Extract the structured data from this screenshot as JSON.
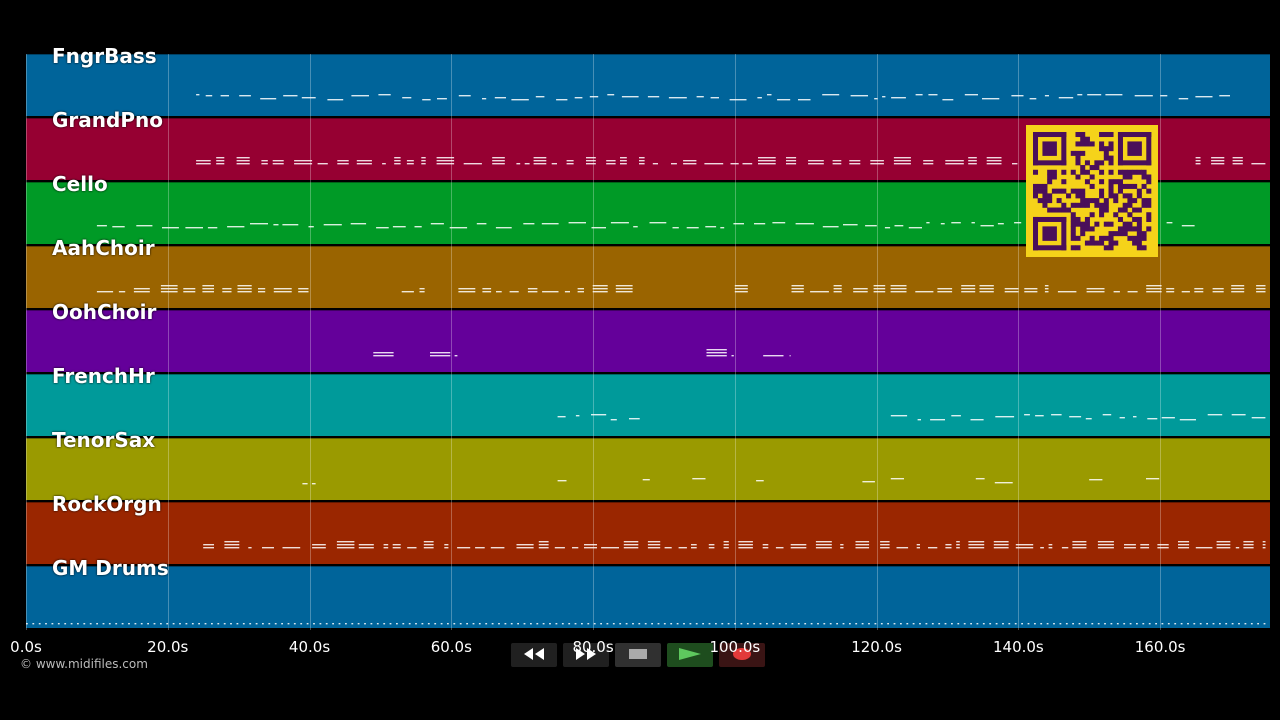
{
  "tracks": [
    {
      "name": "FngrBass",
      "color": "#00649a",
      "style": "line"
    },
    {
      "name": "GrandPno",
      "color": "#960032",
      "style": "dense"
    },
    {
      "name": "Cello",
      "color": "#009a26",
      "style": "line"
    },
    {
      "name": "AahChoir",
      "color": "#9a6400",
      "style": "dense"
    },
    {
      "name": "OohChoir",
      "color": "#64009a",
      "style": "sparse"
    },
    {
      "name": "FrenchHr",
      "color": "#009a9a",
      "style": "line"
    },
    {
      "name": "TenorSax",
      "color": "#9a9a00",
      "style": "bits"
    },
    {
      "name": "RockOrgn",
      "color": "#9a2600",
      "style": "dense"
    },
    {
      "name": "GM Drums",
      "color": "#00649a",
      "style": "dots"
    }
  ],
  "axis": {
    "min_seconds": 0,
    "max_seconds": 175.5,
    "ticks": [
      {
        "value": 0,
        "label": "0.0s"
      },
      {
        "value": 20,
        "label": "20.0s"
      },
      {
        "value": 40,
        "label": "40.0s"
      },
      {
        "value": 60,
        "label": "60.0s"
      },
      {
        "value": 80,
        "label": "80.0s"
      },
      {
        "value": 100,
        "label": "100.0s"
      },
      {
        "value": 120,
        "label": "120.0s"
      },
      {
        "value": 140,
        "label": "140.0s"
      },
      {
        "value": 160,
        "label": "160.0s"
      }
    ]
  },
  "copyright": "© www.midifiles.com",
  "transport": [
    {
      "name": "rewind-button",
      "icon": "rewind-icon",
      "bg": "#202020"
    },
    {
      "name": "fast-forward-button",
      "icon": "fast-forward-icon",
      "bg": "#202020"
    },
    {
      "name": "stop-button",
      "icon": "stop-icon",
      "bg": "#303030"
    },
    {
      "name": "play-button",
      "icon": "play-icon",
      "bg": "#1e4d1e"
    },
    {
      "name": "record-button",
      "icon": "record-icon",
      "bg": "#3a1414"
    }
  ],
  "qr": {
    "fg": "#4a0f5a",
    "bg": "#f5d31a"
  }
}
